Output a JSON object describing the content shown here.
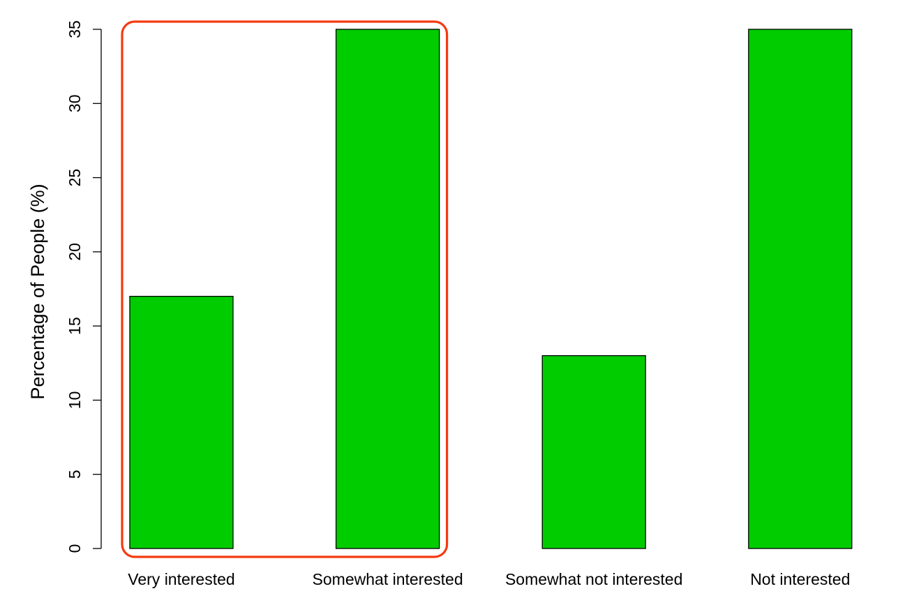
{
  "chart_data": {
    "type": "bar",
    "categories": [
      "Very interested",
      "Somewhat interested",
      "Somewhat not interested",
      "Not interested"
    ],
    "values": [
      17,
      35,
      13,
      35
    ],
    "title": "",
    "xlabel": "",
    "ylabel": "Percentage of People (%)",
    "ylim": [
      0,
      35
    ],
    "yticks": [
      0,
      5,
      10,
      15,
      20,
      25,
      30,
      35
    ],
    "grid": false,
    "bar_color": "#00CC00",
    "bar_edge_color": "#000000",
    "highlight": {
      "categories": [
        "Very interested",
        "Somewhat interested"
      ],
      "color": "#F53A12"
    }
  }
}
